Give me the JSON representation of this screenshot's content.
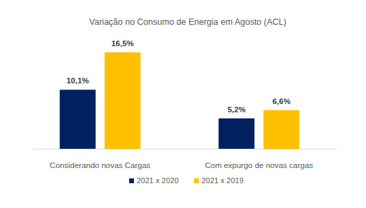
{
  "chart_data": {
    "type": "bar",
    "title": "Variação no Consumo de Energia em Agosto (ACL)",
    "categories": [
      "Considerando novas Cargas",
      "Com expurgo de novas cargas"
    ],
    "series": [
      {
        "name": "2021 x 2020",
        "color": "#002060",
        "values": [
          10.1,
          5.2
        ],
        "value_labels": [
          "10,1%",
          "5,2%"
        ]
      },
      {
        "name": "2021 x 2019",
        "color": "#FFC000",
        "values": [
          16.5,
          6.6
        ],
        "value_labels": [
          "16,5%",
          "6,6%"
        ]
      }
    ],
    "ylim": [
      0,
      16.5
    ],
    "grid": false,
    "legend": "bottom",
    "data_labels": true,
    "tick_labels": "x"
  }
}
